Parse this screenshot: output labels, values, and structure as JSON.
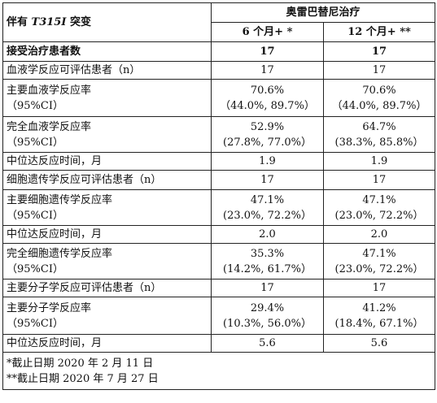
{
  "header": {
    "col1_prefix": "伴有",
    "col1_mutation": "T315I",
    "col1_suffix": "突变",
    "group": "奥雷巴替尼治疗",
    "col_6m": "6 个月+ *",
    "col_12m": "12 个月+ **"
  },
  "rows": [
    {
      "label": "接受治疗患者数",
      "v6": "17",
      "v12": "17"
    },
    {
      "label": "血液学反应可评估患者（n）",
      "v6": "17",
      "v12": "17"
    },
    {
      "label": "主要血液学反应率",
      "label2": "（95%CI）",
      "v6": "70.6%",
      "v6b": "（44.0%, 89.7%）",
      "v12": "70.6%",
      "v12b": "（44.0%, 89.7%）"
    },
    {
      "label": "完全血液学反应率",
      "label2": "（95%CI）",
      "v6": "52.9%",
      "v6b": "(27.8%, 77.0%）",
      "v12": "64.7%",
      "v12b": "(38.3%, 85.8%）"
    },
    {
      "label": "中位达反应时间，月",
      "v6": "1.9",
      "v12": "1.9"
    },
    {
      "label": "细胞遗传学反应可评估患者（n）",
      "v6": "17",
      "v12": "17"
    },
    {
      "label": "主要细胞遗传学反应率",
      "label2": "（95%CI）",
      "v6": "47.1%",
      "v6b": "(23.0%, 72.2%）",
      "v12": "47.1%",
      "v12b": "(23.0%, 72.2%）"
    },
    {
      "label": "中位达反应时间，月",
      "v6": "2.0",
      "v12": "2.0"
    },
    {
      "label": "完全细胞遗传学反应率",
      "label2": "（95%CI）",
      "v6": "35.3%",
      "v6b": "(14.2%, 61.7%）",
      "v12": "47.1%",
      "v12b": "(23.0%, 72.2%）"
    },
    {
      "label": "主要分子学反应可评估患者（n）",
      "v6": "17",
      "v12": "17"
    },
    {
      "label": "主要分子学反应率",
      "label2": "（95%CI）",
      "v6": "29.4%",
      "v6b": "(10.3%, 56.0%）",
      "v12": "41.2%",
      "v12b": "(18.4%, 67.1%）"
    },
    {
      "label": "中位达反应时间，月",
      "v6": "5.6",
      "v12": "5.6"
    }
  ],
  "notes": {
    "n1": "*截止日期 2020 年 2 月 11 日",
    "n2": "**截止日期 2020 年 7 月 27 日"
  }
}
